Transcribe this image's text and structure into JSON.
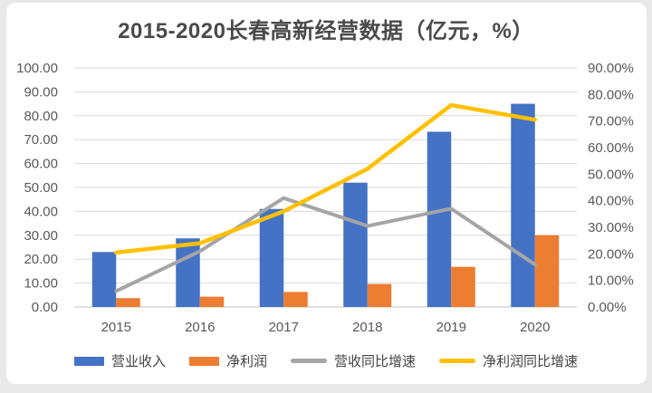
{
  "page": {
    "background": "#e9e9e9",
    "card_background": "#ffffff",
    "grid_color": "#d9d9d9",
    "baseline_color": "#c3c3c3",
    "axis_text_color": "#595959",
    "title_text_color": "#4a4a4a"
  },
  "chart_data": {
    "type": "bar",
    "subtype": "combo-bar-line-dual-axis",
    "title": "2015-2020长春高新经营数据（亿元，%）",
    "categories": [
      "2015",
      "2016",
      "2017",
      "2018",
      "2019",
      "2020"
    ],
    "series": [
      {
        "name": "营业收入",
        "type": "bar",
        "axis": "left",
        "color": "#4472C4",
        "values": [
          23.0,
          28.7,
          41.0,
          52.0,
          73.3,
          85.0
        ]
      },
      {
        "name": "净利润",
        "type": "bar",
        "axis": "left",
        "color": "#ED7D31",
        "values": [
          3.7,
          4.3,
          6.3,
          9.6,
          16.8,
          30.0
        ]
      },
      {
        "name": "营收同比增速",
        "type": "line",
        "axis": "right",
        "color": "#A5A5A5",
        "values": [
          6.0,
          21.0,
          41.0,
          30.5,
          37.0,
          16.0
        ]
      },
      {
        "name": "净利润同比增速",
        "type": "line",
        "axis": "right",
        "color": "#FFC000",
        "values": [
          20.5,
          24.0,
          36.0,
          52.0,
          76.0,
          70.5
        ]
      }
    ],
    "left_axis": {
      "min": 0,
      "max": 100,
      "step": 10,
      "tick_labels": [
        "100.00",
        "90.00",
        "80.00",
        "70.00",
        "60.00",
        "50.00",
        "40.00",
        "30.00",
        "20.00",
        "10.00",
        "0.00"
      ]
    },
    "right_axis": {
      "min": 0,
      "max": 90,
      "step": 10,
      "tick_labels": [
        "90.00%",
        "80.00%",
        "70.00%",
        "60.00%",
        "50.00%",
        "40.00%",
        "30.00%",
        "20.00%",
        "10.00%",
        "0.00%"
      ]
    },
    "grid": true,
    "legend_position": "bottom"
  }
}
